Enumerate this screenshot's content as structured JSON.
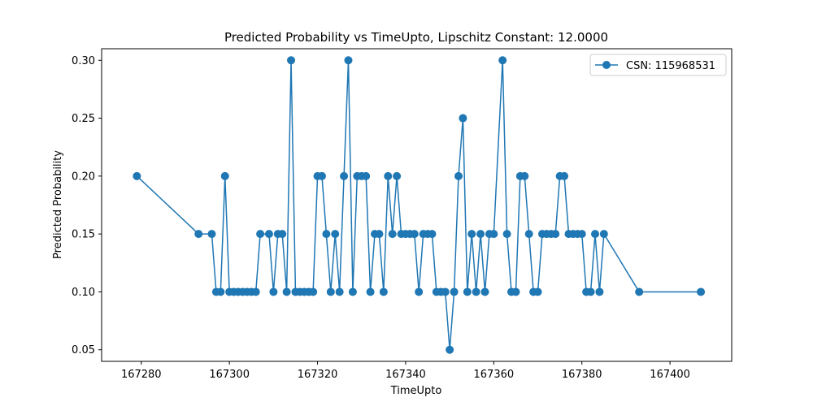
{
  "chart_data": {
    "type": "line",
    "title": "Predicted Probability vs TimeUpto, Lipschitz Constant: 12.0000",
    "xlabel": "TimeUpto",
    "ylabel": "Predicted Probability",
    "xlim": [
      167271,
      167414
    ],
    "ylim": [
      0.04,
      0.31
    ],
    "xticks": [
      167280,
      167300,
      167320,
      167340,
      167360,
      167380,
      167400
    ],
    "yticks": [
      0.05,
      0.1,
      0.15,
      0.2,
      0.25,
      0.3
    ],
    "ytick_labels": [
      "0.05",
      "0.10",
      "0.15",
      "0.20",
      "0.25",
      "0.30"
    ],
    "grid": false,
    "legend_position": "top-right",
    "color": "#1f77b4",
    "series": [
      {
        "name": "CSN: 115968531",
        "x": [
          167279,
          167293,
          167296,
          167297,
          167298,
          167299,
          167300,
          167301,
          167302,
          167303,
          167304,
          167305,
          167306,
          167307,
          167309,
          167310,
          167311,
          167312,
          167313,
          167314,
          167315,
          167316,
          167317,
          167318,
          167319,
          167320,
          167321,
          167322,
          167323,
          167324,
          167325,
          167326,
          167327,
          167328,
          167329,
          167330,
          167331,
          167332,
          167333,
          167334,
          167335,
          167336,
          167337,
          167338,
          167339,
          167340,
          167341,
          167342,
          167343,
          167344,
          167345,
          167346,
          167347,
          167348,
          167349,
          167350,
          167351,
          167352,
          167353,
          167354,
          167355,
          167356,
          167357,
          167358,
          167359,
          167360,
          167362,
          167363,
          167364,
          167365,
          167366,
          167367,
          167368,
          167369,
          167370,
          167371,
          167372,
          167373,
          167374,
          167375,
          167376,
          167377,
          167378,
          167379,
          167380,
          167381,
          167382,
          167383,
          167384,
          167385,
          167393,
          167407
        ],
        "y": [
          0.2,
          0.15,
          0.15,
          0.1,
          0.1,
          0.2,
          0.1,
          0.1,
          0.1,
          0.1,
          0.1,
          0.1,
          0.1,
          0.15,
          0.15,
          0.1,
          0.15,
          0.15,
          0.1,
          0.3,
          0.1,
          0.1,
          0.1,
          0.1,
          0.1,
          0.2,
          0.2,
          0.15,
          0.1,
          0.15,
          0.1,
          0.2,
          0.3,
          0.1,
          0.2,
          0.2,
          0.2,
          0.1,
          0.15,
          0.15,
          0.1,
          0.2,
          0.15,
          0.2,
          0.15,
          0.15,
          0.15,
          0.15,
          0.1,
          0.15,
          0.15,
          0.15,
          0.1,
          0.1,
          0.1,
          0.05,
          0.1,
          0.2,
          0.25,
          0.1,
          0.15,
          0.1,
          0.15,
          0.1,
          0.15,
          0.15,
          0.3,
          0.15,
          0.1,
          0.1,
          0.2,
          0.2,
          0.15,
          0.1,
          0.1,
          0.15,
          0.15,
          0.15,
          0.15,
          0.2,
          0.2,
          0.15,
          0.15,
          0.15,
          0.15,
          0.1,
          0.1,
          0.15,
          0.1,
          0.15,
          0.1,
          0.1
        ]
      }
    ]
  }
}
